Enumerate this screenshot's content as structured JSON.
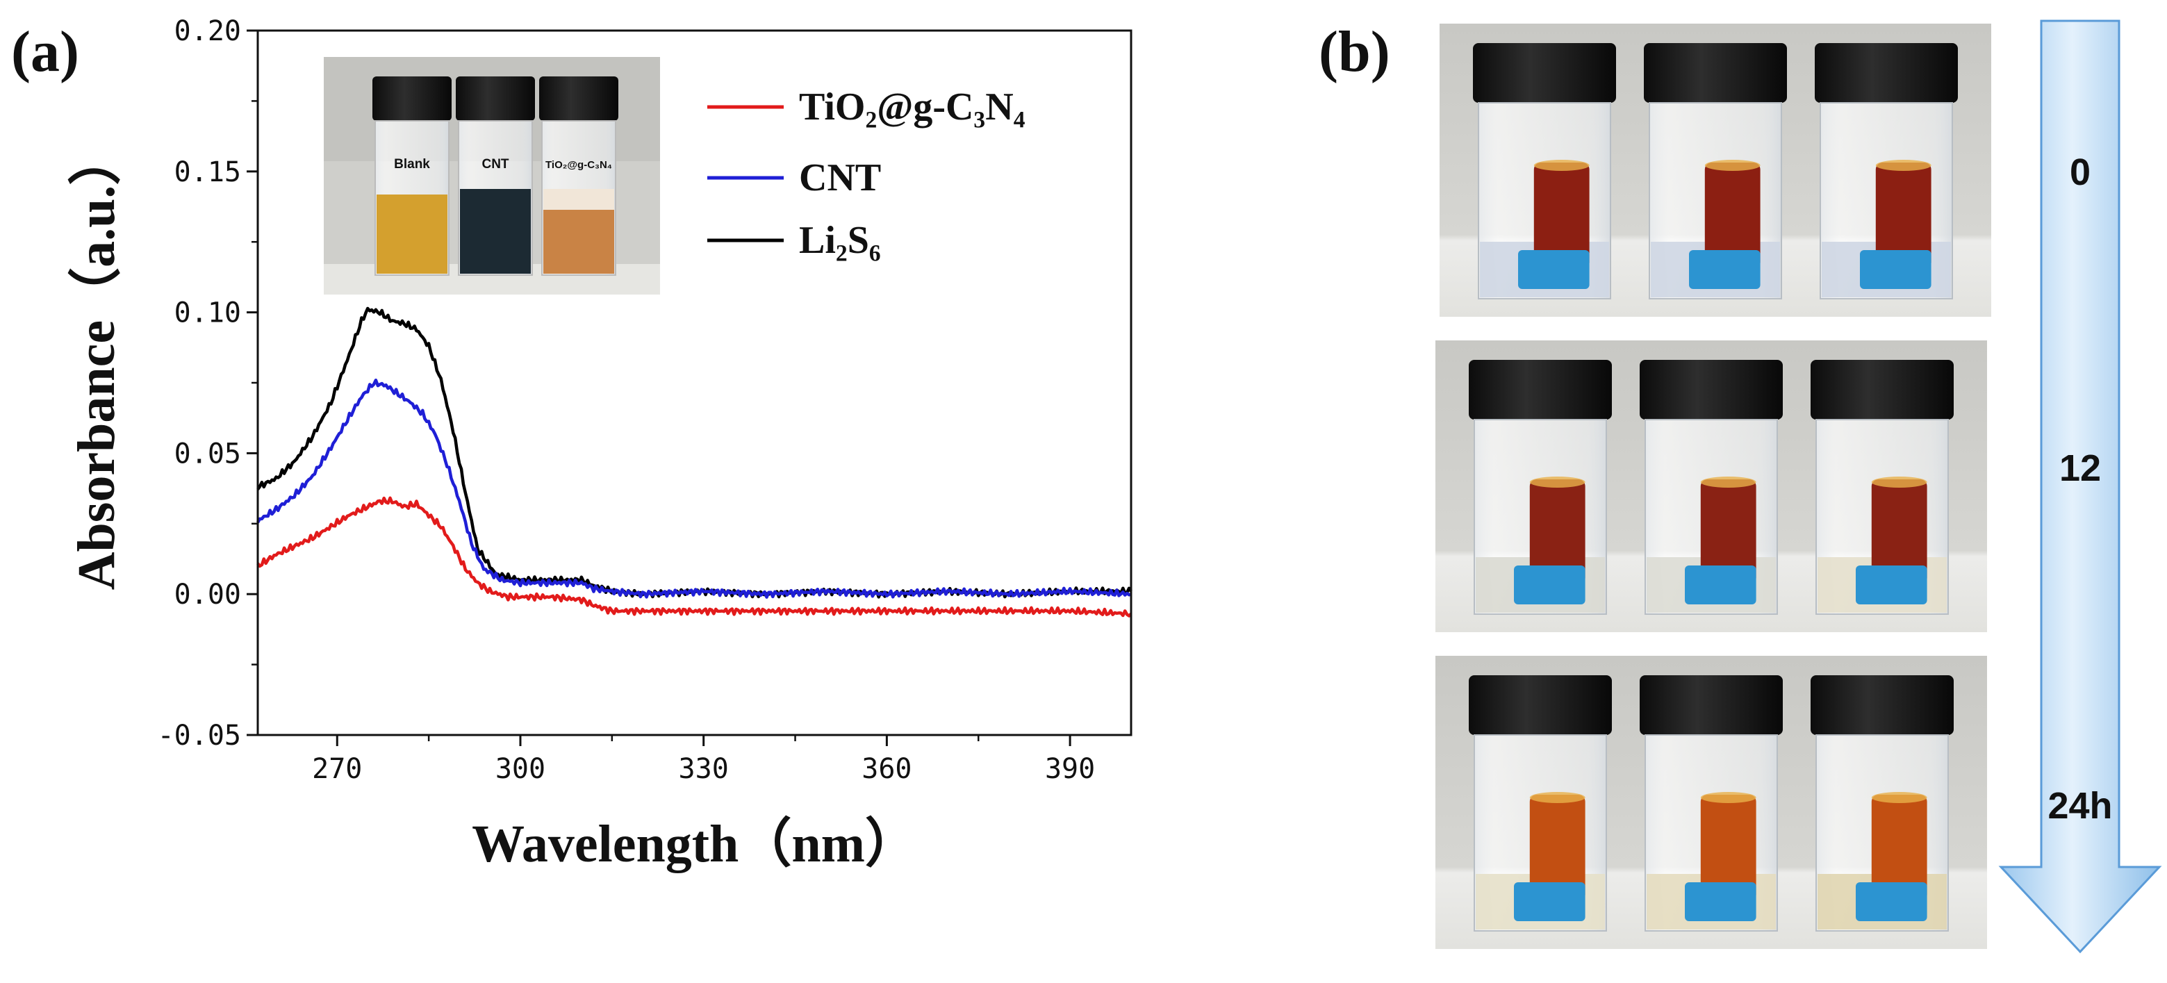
{
  "panels": {
    "a": "(a)",
    "b": "(b)"
  },
  "chart_data": {
    "type": "line",
    "xlabel": "Wavelength（nm）",
    "ylabel": "Absorbance（a.u.）",
    "xlim": [
      257,
      400
    ],
    "ylim": [
      -0.05,
      0.2
    ],
    "xticks": [
      270,
      300,
      330,
      360,
      390
    ],
    "xtick_labels": [
      "270",
      "300",
      "330",
      "360",
      "390"
    ],
    "yticks": [
      -0.05,
      0.0,
      0.05,
      0.1,
      0.15,
      0.2
    ],
    "ytick_labels": [
      "-0.05",
      "0.00",
      "0.05",
      "0.10",
      "0.15",
      "0.20"
    ],
    "legend_position": "top-right",
    "series": [
      {
        "name": "Li₂S₆",
        "color": "#000000",
        "x": [
          257,
          260,
          263,
          266,
          269,
          272,
          274,
          275,
          277,
          279,
          281,
          283,
          285,
          287,
          289,
          291,
          293,
          296,
          300,
          305,
          310,
          312,
          315,
          320,
          330,
          340,
          350,
          360,
          370,
          380,
          390,
          400
        ],
        "y": [
          0.038,
          0.041,
          0.047,
          0.056,
          0.068,
          0.085,
          0.097,
          0.101,
          0.1,
          0.097,
          0.096,
          0.094,
          0.088,
          0.076,
          0.058,
          0.036,
          0.016,
          0.007,
          0.005,
          0.005,
          0.005,
          0.003,
          0.001,
          0.0,
          0.001,
          0.0,
          0.001,
          0.0,
          0.001,
          0.0,
          0.001,
          0.001
        ]
      },
      {
        "name": "CNT",
        "color": "#1f1fd6",
        "x": [
          257,
          260,
          263,
          266,
          269,
          272,
          274,
          276,
          278,
          280,
          282,
          284,
          286,
          288,
          290,
          292,
          294,
          297,
          300,
          305,
          310,
          312,
          315,
          320,
          330,
          340,
          350,
          360,
          370,
          380,
          390,
          400
        ],
        "y": [
          0.026,
          0.03,
          0.035,
          0.042,
          0.052,
          0.063,
          0.07,
          0.075,
          0.074,
          0.071,
          0.068,
          0.064,
          0.057,
          0.046,
          0.033,
          0.018,
          0.009,
          0.005,
          0.004,
          0.004,
          0.004,
          0.002,
          0.001,
          0.0,
          0.001,
          0.0,
          0.001,
          0.0,
          0.001,
          0.0,
          0.001,
          0.0
        ]
      },
      {
        "name": "TiO₂@g-C₃N₄",
        "color": "#e21b1b",
        "x": [
          257,
          260,
          263,
          266,
          269,
          272,
          275,
          277,
          279,
          281,
          283,
          285,
          287,
          289,
          291,
          293,
          295,
          298,
          300,
          305,
          310,
          312,
          315,
          320,
          330,
          340,
          350,
          360,
          370,
          380,
          390,
          400
        ],
        "y": [
          0.01,
          0.014,
          0.017,
          0.02,
          0.024,
          0.028,
          0.031,
          0.033,
          0.033,
          0.031,
          0.032,
          0.028,
          0.024,
          0.017,
          0.009,
          0.004,
          0.001,
          -0.001,
          -0.001,
          -0.001,
          -0.002,
          -0.004,
          -0.006,
          -0.006,
          -0.006,
          -0.006,
          -0.006,
          -0.006,
          -0.006,
          -0.006,
          -0.006,
          -0.007
        ]
      }
    ]
  },
  "legend": {
    "items": [
      {
        "label": "TiO₂@g-C₃N₄",
        "color": "#e21b1b"
      },
      {
        "label": "CNT",
        "color": "#1f1fd6"
      },
      {
        "label": "Li₂S₆",
        "color": "#000000"
      }
    ]
  },
  "inset": {
    "labels": [
      "Blank",
      "CNT",
      "TiO₂@g-C₃N₄"
    ]
  },
  "timeline": {
    "labels": [
      "0",
      "12",
      "24h"
    ]
  }
}
